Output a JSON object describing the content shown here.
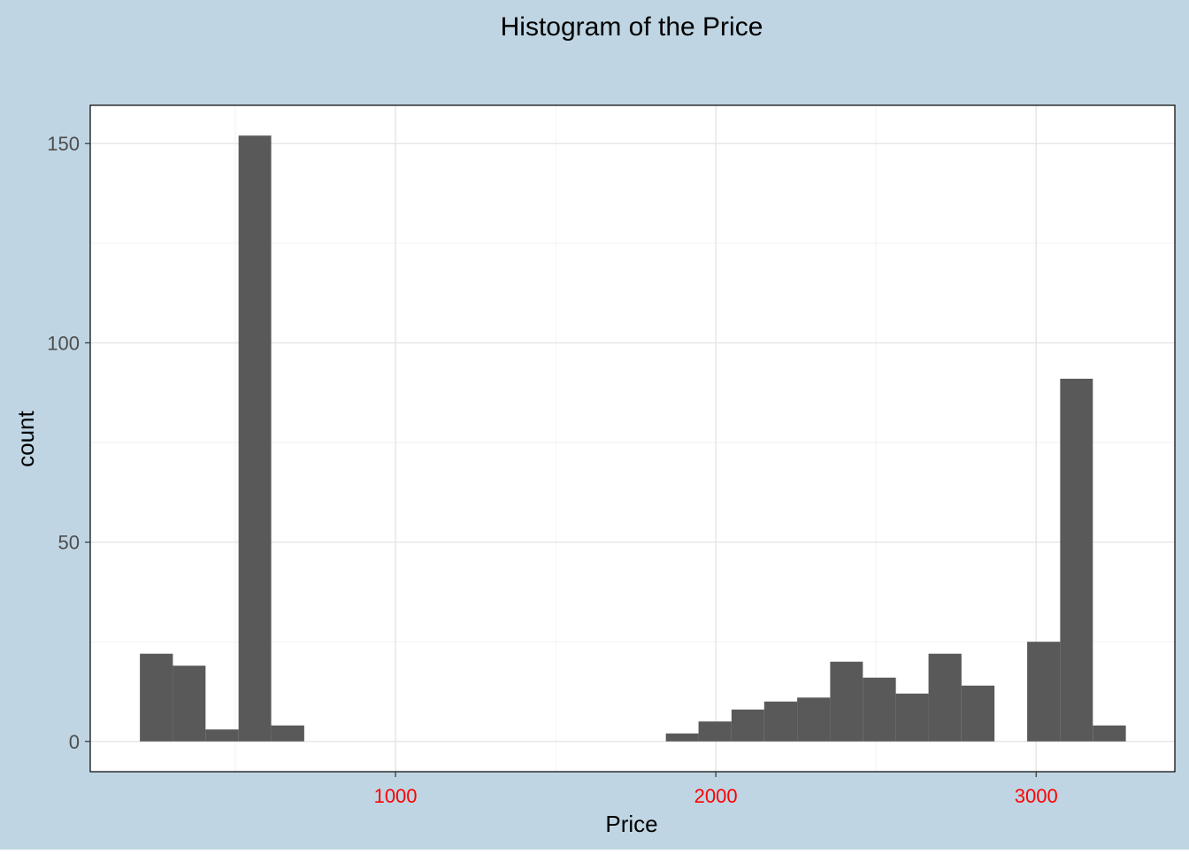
{
  "colors": {
    "figure_background": "#BFD5E3",
    "panel_background": "#FFFFFF",
    "panel_border": "#000000",
    "grid_major": "#E5E5E5",
    "grid_minor": "#F2F2F2",
    "bar_fill": "#595959",
    "x_tick_text": "#FF0000",
    "y_tick_text": "#4D4D4D",
    "title_text": "#000000"
  },
  "chart_data": {
    "type": "bar",
    "subtype": "histogram",
    "title": "Histogram of the Price",
    "xlabel": "Price",
    "ylabel": "count",
    "xlim": [
      47,
      3433
    ],
    "ylim": [
      -7.6,
      159.6
    ],
    "x_ticks": [
      1000,
      2000,
      3000
    ],
    "x_tick_labels": [
      "1000",
      "2000",
      "3000"
    ],
    "x_minor_ticks": [
      500,
      1500,
      2500
    ],
    "y_ticks": [
      0,
      50,
      100,
      150
    ],
    "y_tick_labels": [
      "0",
      "50",
      "100",
      "150"
    ],
    "y_minor_ticks": [
      25,
      75,
      125
    ],
    "grid": true,
    "legend": "none",
    "bin_width": 102.6,
    "bins": [
      {
        "x0": 202,
        "x1": 305,
        "count": 22
      },
      {
        "x0": 305,
        "x1": 407,
        "count": 19
      },
      {
        "x0": 407,
        "x1": 510,
        "count": 3
      },
      {
        "x0": 510,
        "x1": 612,
        "count": 152
      },
      {
        "x0": 612,
        "x1": 715,
        "count": 4
      },
      {
        "x0": 715,
        "x1": 818,
        "count": 0
      },
      {
        "x0": 818,
        "x1": 920,
        "count": 0
      },
      {
        "x0": 920,
        "x1": 1023,
        "count": 0
      },
      {
        "x0": 1023,
        "x1": 1125,
        "count": 0
      },
      {
        "x0": 1125,
        "x1": 1228,
        "count": 0
      },
      {
        "x0": 1228,
        "x1": 1331,
        "count": 0
      },
      {
        "x0": 1331,
        "x1": 1433,
        "count": 0
      },
      {
        "x0": 1433,
        "x1": 1536,
        "count": 0
      },
      {
        "x0": 1536,
        "x1": 1638,
        "count": 0
      },
      {
        "x0": 1638,
        "x1": 1741,
        "count": 0
      },
      {
        "x0": 1741,
        "x1": 1844,
        "count": 0
      },
      {
        "x0": 1844,
        "x1": 1946,
        "count": 2
      },
      {
        "x0": 1946,
        "x1": 2049,
        "count": 5
      },
      {
        "x0": 2049,
        "x1": 2151,
        "count": 8
      },
      {
        "x0": 2151,
        "x1": 2254,
        "count": 10
      },
      {
        "x0": 2254,
        "x1": 2357,
        "count": 11
      },
      {
        "x0": 2357,
        "x1": 2459,
        "count": 20
      },
      {
        "x0": 2459,
        "x1": 2562,
        "count": 16
      },
      {
        "x0": 2562,
        "x1": 2664,
        "count": 12
      },
      {
        "x0": 2664,
        "x1": 2767,
        "count": 22
      },
      {
        "x0": 2767,
        "x1": 2870,
        "count": 14
      },
      {
        "x0": 2870,
        "x1": 2972,
        "count": 0
      },
      {
        "x0": 2972,
        "x1": 3075,
        "count": 25
      },
      {
        "x0": 3075,
        "x1": 3177,
        "count": 91
      },
      {
        "x0": 3177,
        "x1": 3280,
        "count": 4
      }
    ]
  }
}
